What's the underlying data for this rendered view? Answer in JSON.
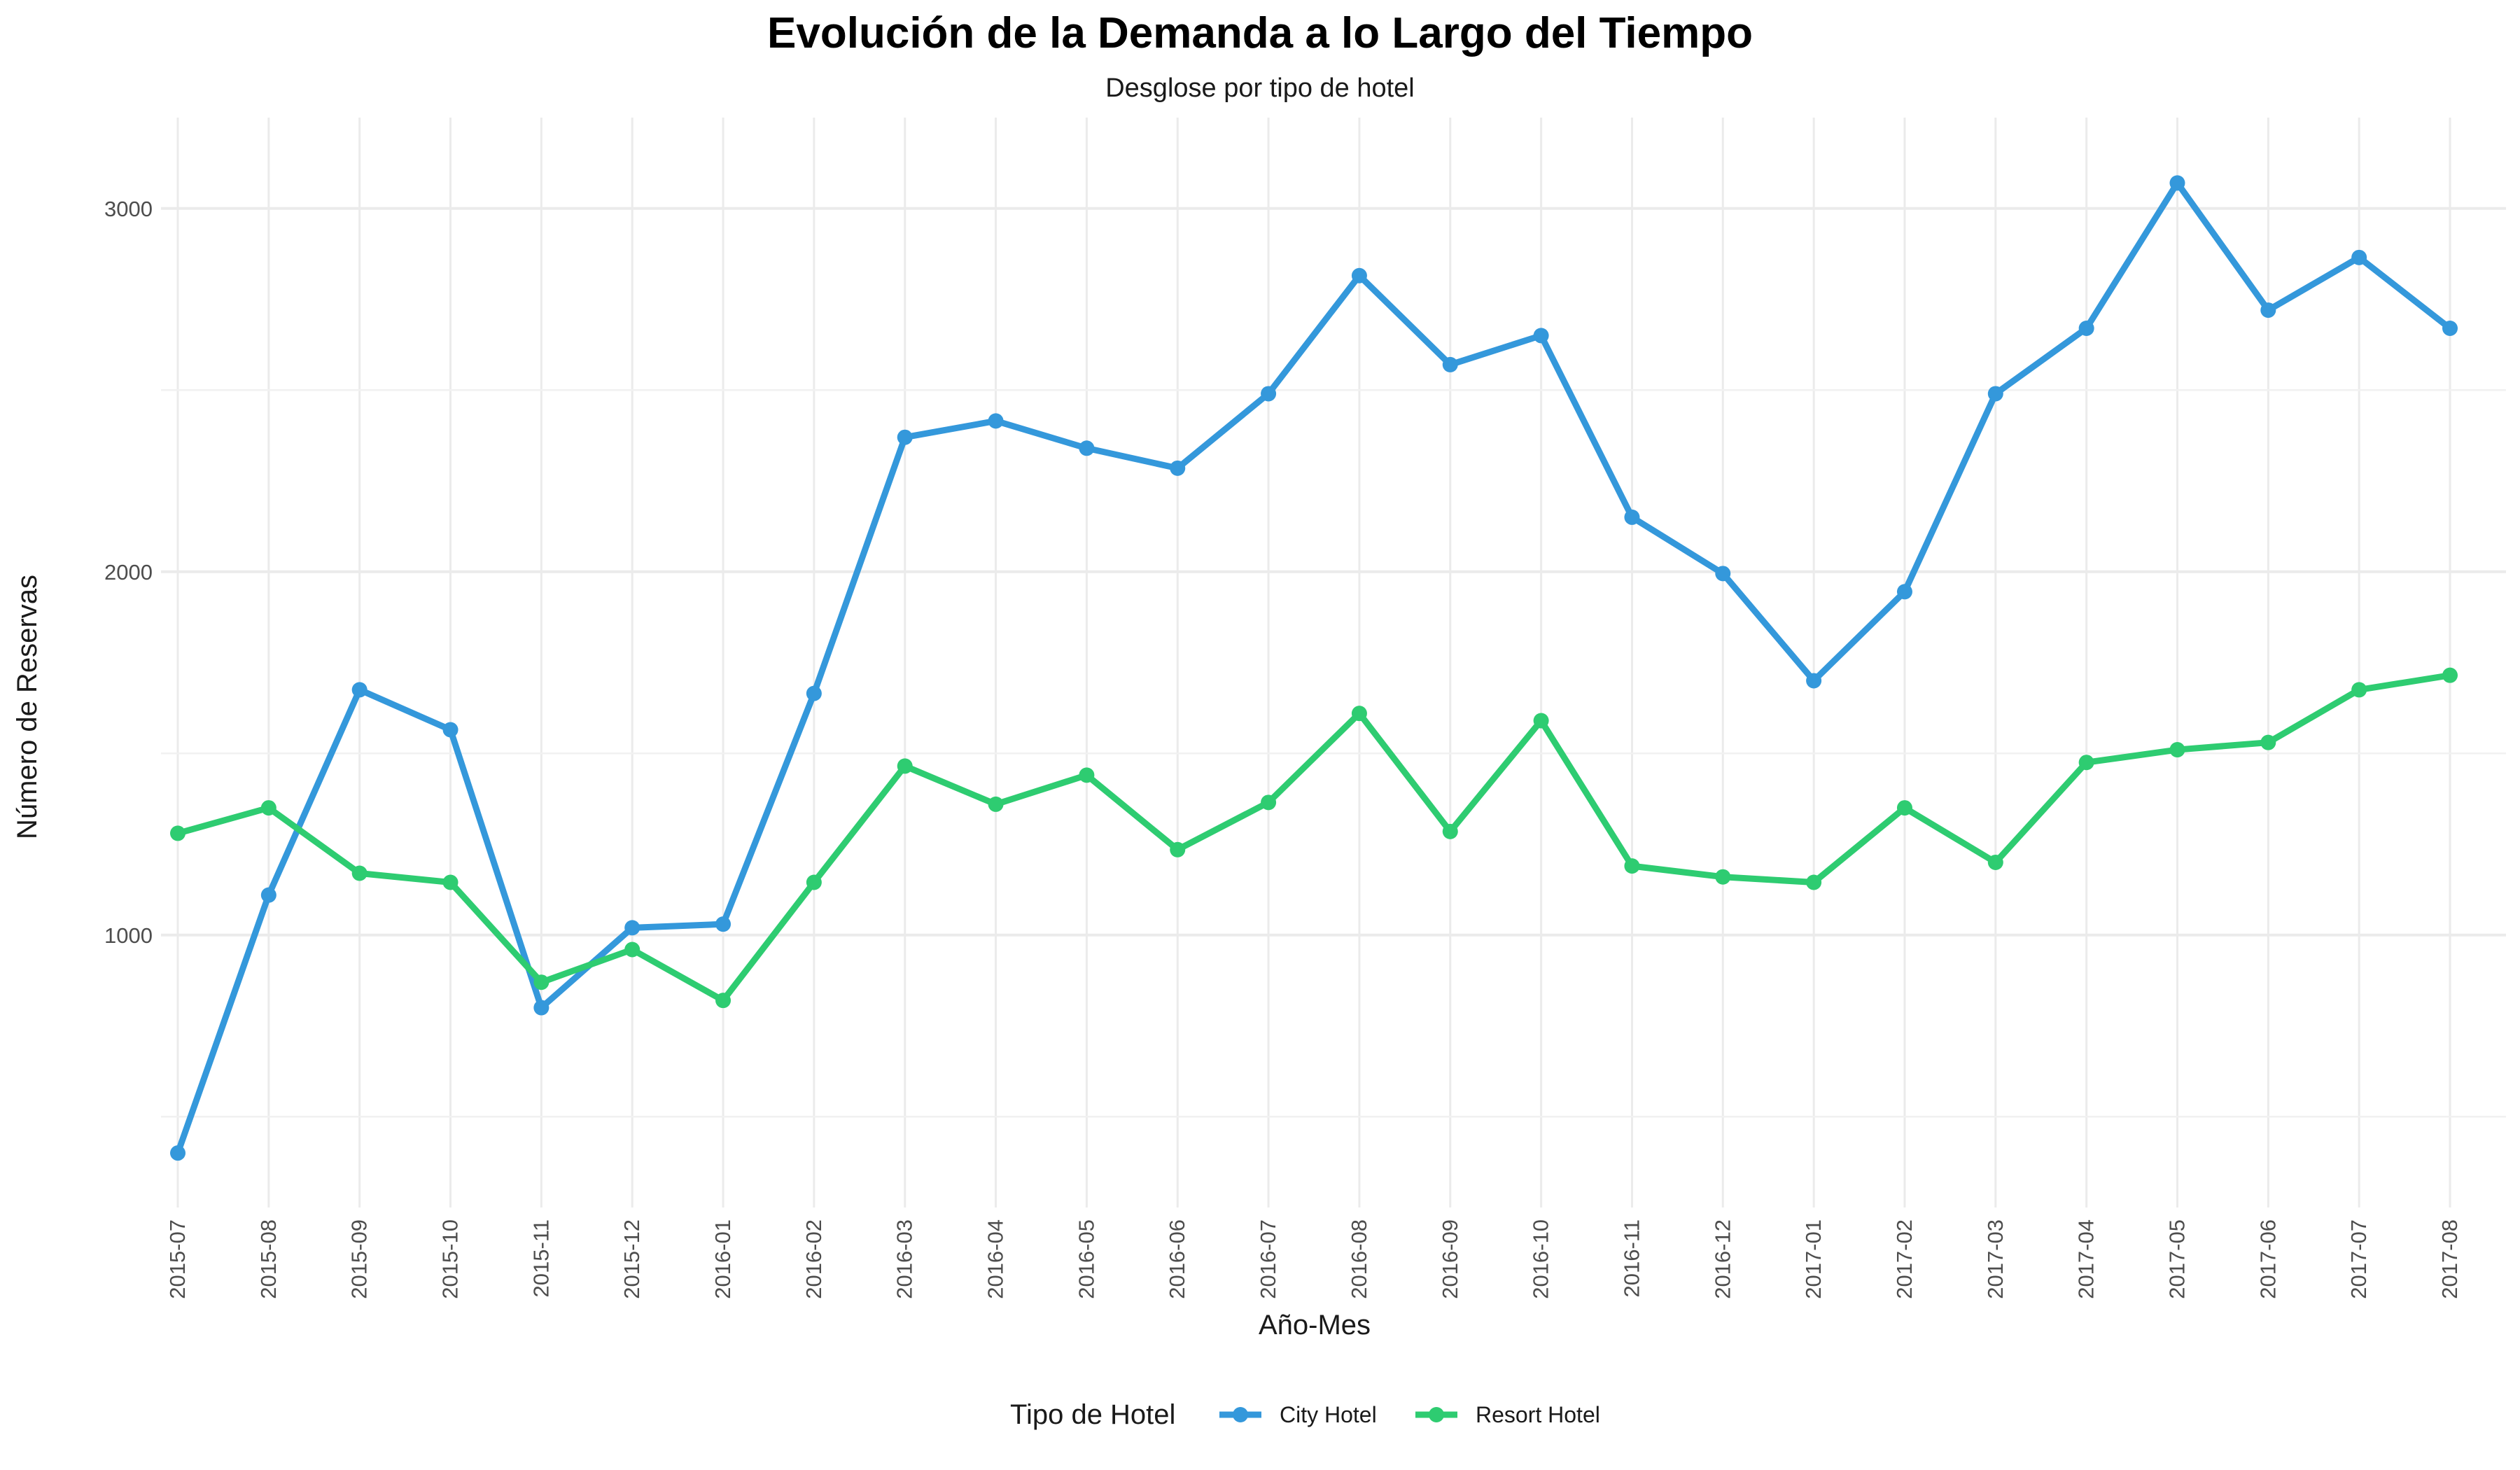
{
  "chart_data": {
    "type": "line",
    "title": "Evolución de la Demanda a lo Largo del Tiempo",
    "subtitle": "Desglose por tipo de hotel",
    "xlabel": "Año-Mes",
    "ylabel": "Número de Reservas",
    "categories": [
      "2015-07",
      "2015-08",
      "2015-09",
      "2015-10",
      "2015-11",
      "2015-12",
      "2016-01",
      "2016-02",
      "2016-03",
      "2016-04",
      "2016-05",
      "2016-06",
      "2016-07",
      "2016-08",
      "2016-09",
      "2016-10",
      "2016-11",
      "2016-12",
      "2017-01",
      "2017-02",
      "2017-03",
      "2017-04",
      "2017-05",
      "2017-06",
      "2017-07",
      "2017-08"
    ],
    "ylim": [
      250,
      3250
    ],
    "yticks": [
      1000,
      2000,
      3000
    ],
    "ytick_labels": [
      "1000",
      "2000",
      "3000"
    ],
    "grid": true,
    "legend": {
      "title": "Tipo de Hotel",
      "position": "bottom"
    },
    "series": [
      {
        "name": "City Hotel",
        "color": "#3498DB",
        "values": [
          400,
          1110,
          1675,
          1565,
          800,
          1020,
          1030,
          1665,
          2370,
          2415,
          2340,
          2285,
          2490,
          2815,
          2570,
          2650,
          2150,
          1995,
          1700,
          1945,
          2490,
          2670,
          3070,
          2720,
          2865,
          2670
        ]
      },
      {
        "name": "Resort Hotel",
        "color": "#2ECC71",
        "values": [
          1280,
          1350,
          1170,
          1145,
          870,
          960,
          820,
          1145,
          1465,
          1360,
          1440,
          1235,
          1365,
          1610,
          1285,
          1590,
          1190,
          1160,
          1145,
          1350,
          1200,
          1475,
          1510,
          1530,
          1675,
          1715
        ]
      }
    ]
  }
}
